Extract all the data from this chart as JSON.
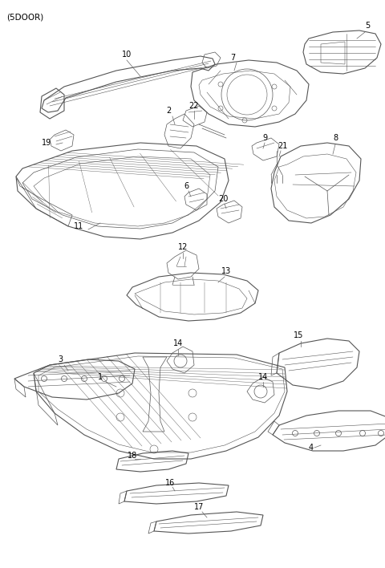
{
  "title": "(5DOOR)",
  "bg_color": "#ffffff",
  "line_color": "#555555",
  "label_color": "#000000",
  "figsize": [
    4.8,
    7.08
  ],
  "dpi": 100,
  "xlim": [
    0,
    480
  ],
  "ylim": [
    0,
    708
  ]
}
